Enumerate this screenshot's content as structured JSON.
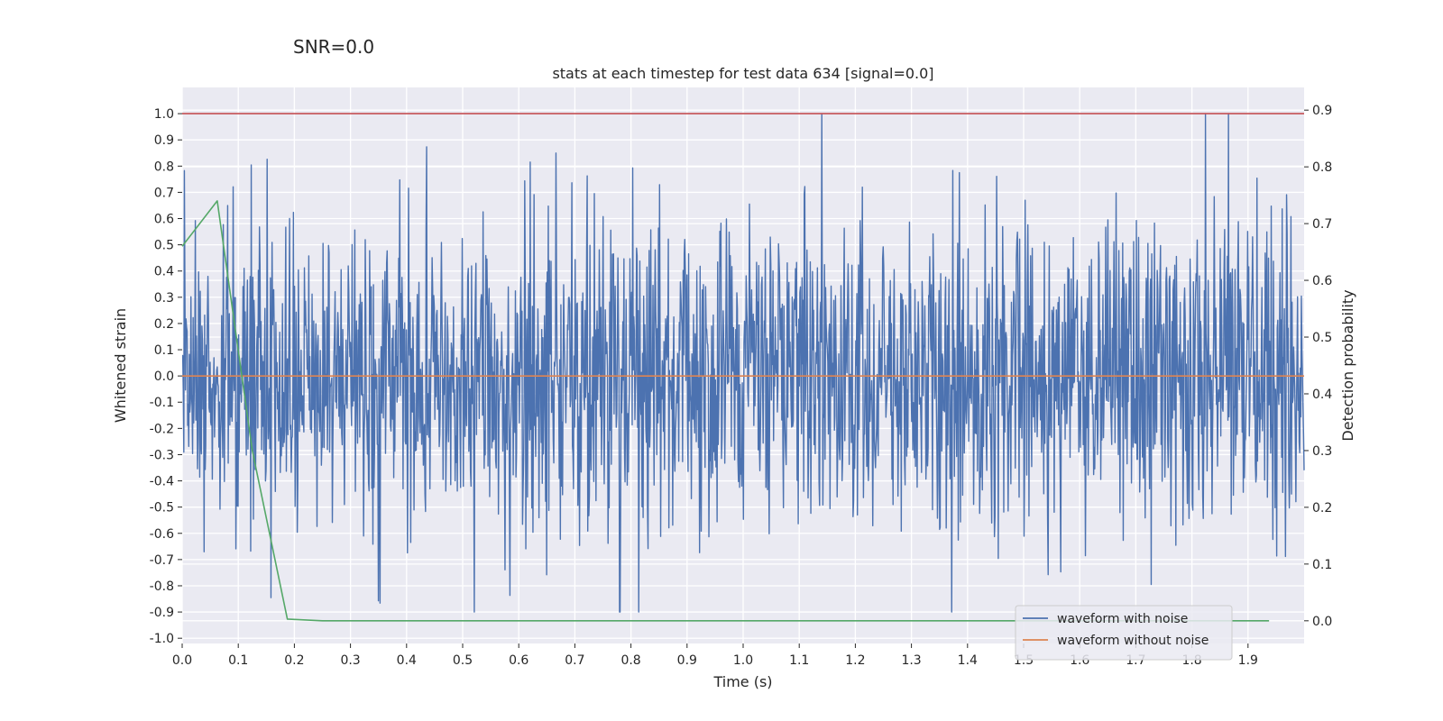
{
  "suptitle": "SNR=0.0",
  "chart_data": {
    "type": "line",
    "title": "stats at each timestep for test data 634 [signal=0.0]",
    "xlabel": "Time (s)",
    "ylabel": "Whitened strain",
    "y2label": "Detection probability",
    "xlim": [
      0.0,
      2.0
    ],
    "ylim": [
      -1.02,
      1.1
    ],
    "y2lim": [
      -0.04,
      0.94
    ],
    "xticks": [
      "0.0",
      "0.1",
      "0.2",
      "0.3",
      "0.4",
      "0.5",
      "0.6",
      "0.7",
      "0.8",
      "0.9",
      "1.0",
      "1.1",
      "1.2",
      "1.3",
      "1.4",
      "1.5",
      "1.6",
      "1.7",
      "1.8",
      "1.9"
    ],
    "yticks": [
      "1.0",
      "0.9",
      "0.8",
      "0.7",
      "0.6",
      "0.5",
      "0.4",
      "0.3",
      "0.2",
      "0.1",
      "0.0",
      "-0.1",
      "-0.2",
      "-0.3",
      "-0.4",
      "-0.5",
      "-0.6",
      "-0.7",
      "-0.8",
      "-0.9",
      "-1.0"
    ],
    "y2ticks": [
      "0.9",
      "0.8",
      "0.7",
      "0.6",
      "0.5",
      "0.4",
      "0.3",
      "0.2",
      "0.1",
      "0.0"
    ],
    "grid": true,
    "legend_position": "bottom-right",
    "series": [
      {
        "name": "waveform with noise",
        "color": "#4c72b0",
        "axis": "left",
        "generated": {
          "kind": "noise",
          "seed": 634,
          "samples": 2048,
          "x_start": 0.0,
          "x_end": 2.0,
          "std": 0.3,
          "min": -0.9,
          "max": 1.0
        }
      },
      {
        "name": "waveform without noise",
        "color": "#dd8452",
        "axis": "left",
        "x": [
          0.0,
          2.0
        ],
        "values": [
          0.0,
          0.0
        ]
      },
      {
        "name": "threshold",
        "color": "#c44e52",
        "axis": "left",
        "in_legend": false,
        "x": [
          0.0,
          2.0
        ],
        "values": [
          1.0,
          1.0
        ]
      },
      {
        "name": "detection probability",
        "color": "#55a868",
        "axis": "right",
        "in_legend": false,
        "x": [
          0.0,
          0.0625,
          0.125,
          0.1875,
          0.25,
          0.3125,
          0.375,
          0.4375,
          0.5,
          0.5625,
          0.625,
          0.6875,
          0.75,
          0.8125,
          0.875,
          0.9375,
          1.0,
          1.0625,
          1.125,
          1.1875,
          1.25,
          1.3125,
          1.375,
          1.4375,
          1.5,
          1.5625,
          1.625,
          1.6875,
          1.75,
          1.8125,
          1.875,
          1.9375
        ],
        "values": [
          0.66,
          0.74,
          0.3,
          0.003,
          0.0,
          0.0,
          0.0,
          0.0,
          0.0,
          0.0,
          0.0,
          0.0,
          0.0,
          0.0,
          0.0,
          0.0,
          0.0,
          0.0,
          0.0,
          0.0,
          0.0,
          0.0,
          0.0,
          0.0,
          0.0,
          0.0,
          0.0,
          0.0,
          0.0,
          0.0,
          0.0,
          0.0
        ]
      }
    ]
  },
  "colors": {
    "axes_bg": "#eaeaf2",
    "grid": "#ffffff",
    "text": "#262626"
  }
}
